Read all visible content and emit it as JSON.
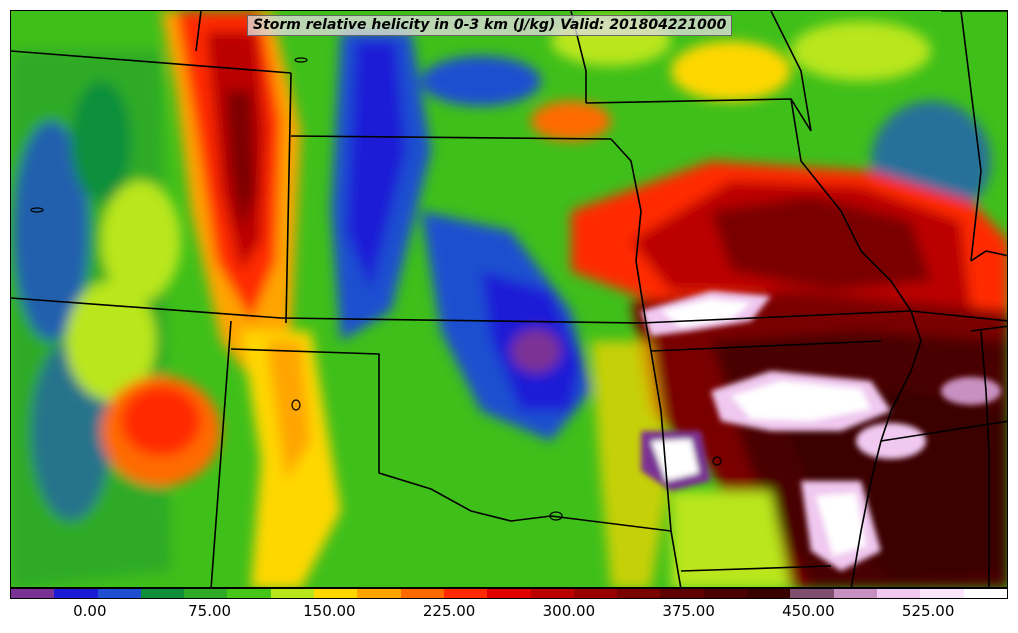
{
  "title": "Storm relative helicity in 0-3 km (J/kg) Valid: 201804221000",
  "colorbar": {
    "colors": [
      "#7b3294",
      "#1b1bd6",
      "#1f4fd0",
      "#0f8f3a",
      "#2faa25",
      "#47c61a",
      "#b9e61a",
      "#ffd700",
      "#ffa500",
      "#ff6a00",
      "#ff2a00",
      "#e00000",
      "#bb0000",
      "#990000",
      "#7a0000",
      "#5e0000",
      "#4a0000",
      "#3a0000",
      "#7f4f6f",
      "#c890c0",
      "#f0c8f0",
      "#fce6fc",
      "#ffffff"
    ],
    "tick_labels": [
      "0.00",
      "75.00",
      "150.00",
      "225.00",
      "300.00",
      "375.00",
      "450.00",
      "525.00"
    ],
    "tick_values": [
      0,
      75,
      150,
      225,
      300,
      375,
      450,
      525
    ],
    "min": -50,
    "max": 575
  },
  "palette": {
    "background_green": "#3fbf1a",
    "boundary": "#000000"
  }
}
